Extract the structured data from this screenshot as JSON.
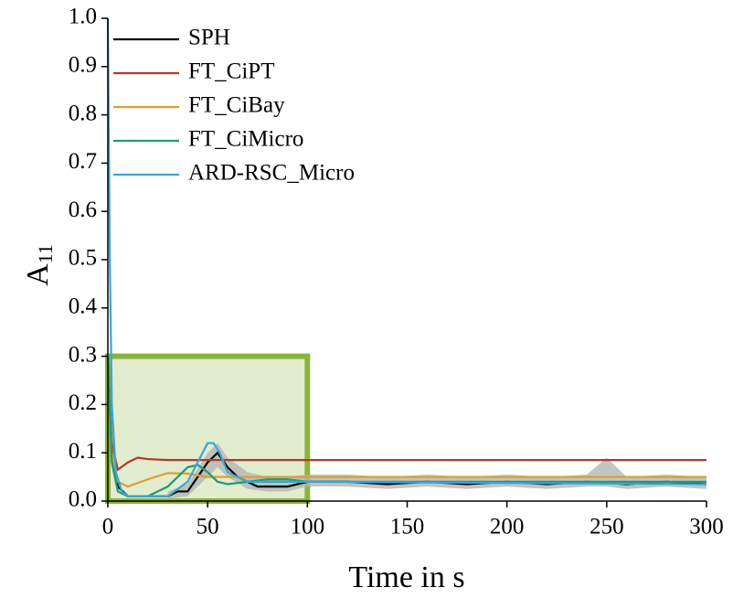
{
  "chart_data": {
    "type": "line",
    "xlabel": "Time in s",
    "ylabel": "A",
    "ylabel_subscript": "11",
    "xlim": [
      0,
      300
    ],
    "ylim": [
      0,
      1
    ],
    "xticks": [
      0,
      50,
      100,
      150,
      200,
      250,
      300
    ],
    "yticks": [
      {
        "value": 0,
        "label": "0.0"
      },
      0.1,
      0.2,
      0.3,
      0.4,
      0.5,
      0.6,
      0.7,
      0.8,
      0.9,
      {
        "value": 1,
        "label": "1.0"
      }
    ],
    "legend": "top-left",
    "highlight": {
      "xlim": [
        0,
        100
      ],
      "ylim": [
        0,
        0.3
      ],
      "color": "#8ab43c"
    },
    "band": {
      "color": "#b5b5b5",
      "x": [
        30,
        40,
        50,
        55,
        60,
        70,
        80,
        90,
        100,
        120,
        140,
        160,
        180,
        200,
        220,
        240,
        250,
        260,
        280,
        300
      ],
      "lower": [
        0.005,
        0.01,
        0.05,
        0.07,
        0.05,
        0.025,
        0.02,
        0.02,
        0.03,
        0.03,
        0.025,
        0.03,
        0.025,
        0.03,
        0.025,
        0.03,
        0.03,
        0.025,
        0.03,
        0.025
      ],
      "upper": [
        0.02,
        0.035,
        0.1,
        0.12,
        0.09,
        0.06,
        0.05,
        0.05,
        0.055,
        0.055,
        0.05,
        0.055,
        0.05,
        0.055,
        0.05,
        0.055,
        0.09,
        0.05,
        0.055,
        0.05
      ]
    },
    "series": [
      {
        "name": "SPH",
        "color": "#000000",
        "x": [
          0,
          2,
          5,
          10,
          20,
          30,
          35,
          40,
          45,
          50,
          55,
          60,
          65,
          70,
          75,
          80,
          90,
          100,
          120,
          140,
          160,
          180,
          200,
          220,
          240,
          260,
          280,
          300
        ],
        "values": [
          0.3,
          0.1,
          0.03,
          0.01,
          0.01,
          0.01,
          0.02,
          0.02,
          0.05,
          0.08,
          0.1,
          0.07,
          0.05,
          0.04,
          0.03,
          0.03,
          0.03,
          0.04,
          0.04,
          0.035,
          0.04,
          0.035,
          0.04,
          0.035,
          0.04,
          0.035,
          0.04,
          0.035
        ]
      },
      {
        "name": "FT_CiPT",
        "color": "#b03a2e",
        "x": [
          0,
          2,
          5,
          10,
          15,
          20,
          30,
          300
        ],
        "values": [
          0.3,
          0.12,
          0.065,
          0.08,
          0.09,
          0.087,
          0.085,
          0.085
        ]
      },
      {
        "name": "FT_CiBay",
        "color": "#d9a033",
        "x": [
          0,
          2,
          5,
          10,
          20,
          30,
          40,
          50,
          60,
          100,
          300
        ],
        "values": [
          0.3,
          0.1,
          0.04,
          0.03,
          0.045,
          0.058,
          0.057,
          0.05,
          0.05,
          0.05,
          0.05
        ]
      },
      {
        "name": "FT_CiMicro",
        "color": "#1f9a7a",
        "x": [
          0,
          2,
          5,
          10,
          20,
          30,
          40,
          45,
          50,
          55,
          60,
          70,
          80,
          90,
          100,
          300
        ],
        "values": [
          0.3,
          0.08,
          0.02,
          0.01,
          0.01,
          0.03,
          0.07,
          0.075,
          0.06,
          0.04,
          0.035,
          0.04,
          0.045,
          0.045,
          0.04,
          0.04
        ]
      },
      {
        "name": "ARD-RSC_Micro",
        "color": "#3aa6d4",
        "x": [
          0,
          1,
          2,
          4,
          7,
          10,
          20,
          30,
          40,
          45,
          50,
          53,
          56,
          60,
          70,
          100,
          300
        ],
        "values": [
          1.0,
          0.5,
          0.2,
          0.06,
          0.02,
          0.01,
          0.01,
          0.01,
          0.04,
          0.08,
          0.12,
          0.12,
          0.1,
          0.06,
          0.04,
          0.04,
          0.035
        ]
      }
    ]
  }
}
